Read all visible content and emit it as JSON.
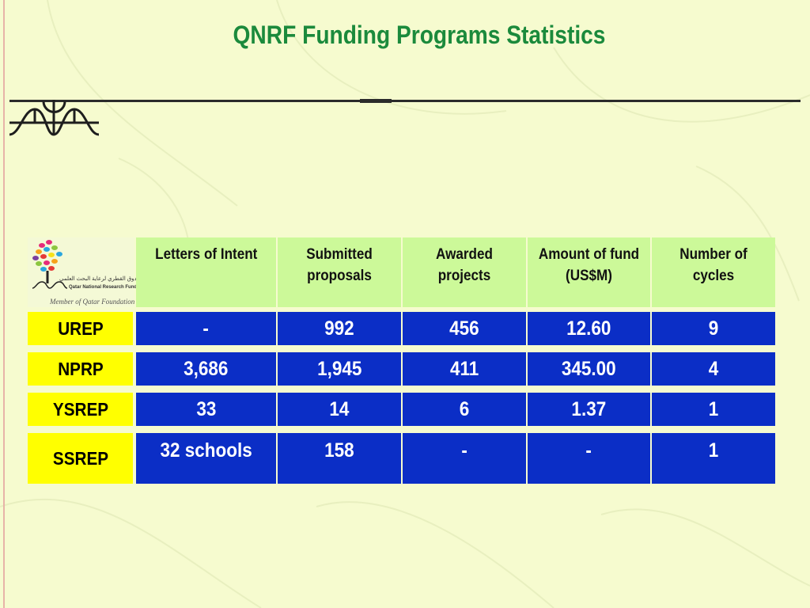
{
  "slide": {
    "title": "QNRF Funding Programs Statistics"
  },
  "logo": {
    "arabic_text": "الصندوق القطري لرعاية البحث العلمي",
    "english_text": "Qatar National Research Fund",
    "tagline": "Member of Qatar Foundation"
  },
  "colors": {
    "title": "#1b8a3c",
    "header_bg": "#ccf999",
    "label_bg": "#ffff00",
    "value_bg": "#0b2ec6",
    "slide_bg": "#f6fbcf"
  },
  "table": {
    "headers": [
      "Letters of Intent",
      "Submitted proposals",
      "Awarded projects",
      "Amount of fund (US$M)",
      "Number of cycles"
    ],
    "rows": [
      {
        "program": "UREP",
        "values": [
          "-",
          "992",
          "456",
          "12.60",
          "9"
        ]
      },
      {
        "program": "NPRP",
        "values": [
          "3,686",
          "1,945",
          "411",
          "345.00",
          "4"
        ]
      },
      {
        "program": "YSREP",
        "values": [
          "33",
          "14",
          "6",
          "1.37",
          "1"
        ]
      },
      {
        "program": "SSREP",
        "values": [
          "32 schools",
          "158",
          "-",
          "-",
          "1"
        ]
      }
    ]
  }
}
